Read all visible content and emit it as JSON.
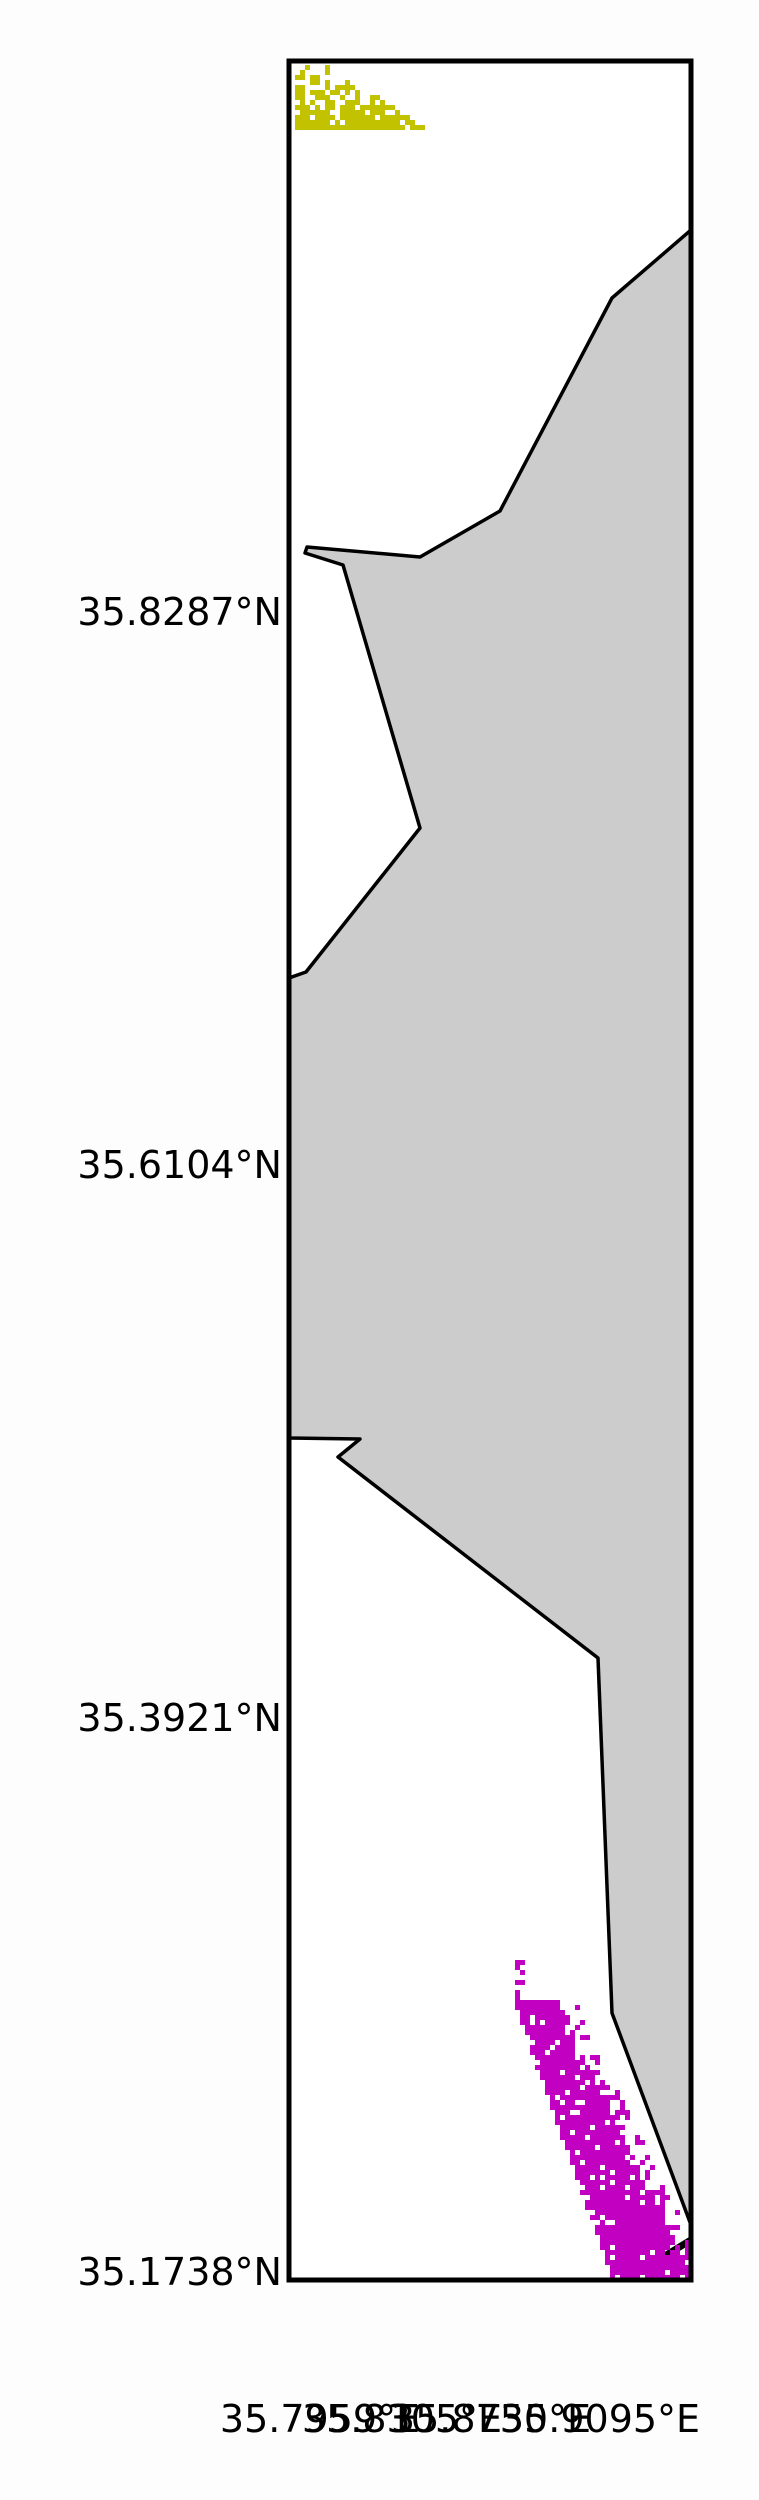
{
  "map": {
    "lat_labels": [
      "35.8287°N",
      "35.6104°N",
      "35.3921°N",
      "35.1738°N"
    ],
    "lon_labels": [
      "35.7959°E",
      "35.8305°E",
      "35.8750°E",
      "35.9095°E"
    ],
    "colors": {
      "land": "#cccccc",
      "coastline": "#000000",
      "frame": "#000000",
      "cluster_north": "#c2c200",
      "cluster_south": "#c200c2",
      "background": "#ffffff"
    }
  }
}
